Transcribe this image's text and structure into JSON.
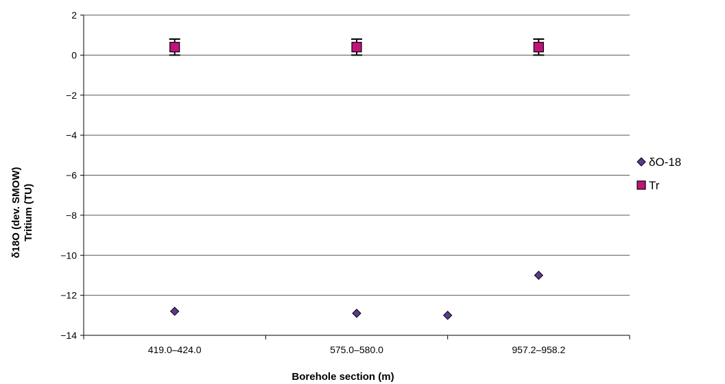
{
  "chart_data": {
    "type": "scatter",
    "xlabel": "Borehole section (m)",
    "ylabel": [
      "δ18O  (dev. SMOW)",
      "Tritium (TU)"
    ],
    "categories": [
      "419.0–424.0",
      "575.0–580.0",
      "957.2–958.2"
    ],
    "ylim": [
      -14,
      2
    ],
    "yticks": [
      2,
      0,
      -2,
      -4,
      -6,
      -8,
      -10,
      -12,
      -14
    ],
    "ytick_labels": [
      "2",
      "0",
      "−2",
      "−4",
      "−6",
      "−8",
      "−10",
      "−12",
      "−14"
    ],
    "grid": "horizontal",
    "legend_position": "right",
    "series": [
      {
        "name": "δO-18",
        "marker": "diamond",
        "color": "#5b3a8c",
        "points": [
          {
            "category_pos": 0,
            "y": -12.8
          },
          {
            "category_pos": 1,
            "y": -12.9
          },
          {
            "category_pos": 1.5,
            "y": -13.0
          },
          {
            "category_pos": 2,
            "y": -11.0
          }
        ]
      },
      {
        "name": "Tr",
        "marker": "square",
        "color": "#c0147a",
        "points": [
          {
            "category_pos": 0,
            "y": 0.4,
            "err": 0.4
          },
          {
            "category_pos": 1,
            "y": 0.4,
            "err": 0.4
          },
          {
            "category_pos": 2,
            "y": 0.4,
            "err": 0.4
          }
        ]
      }
    ]
  }
}
